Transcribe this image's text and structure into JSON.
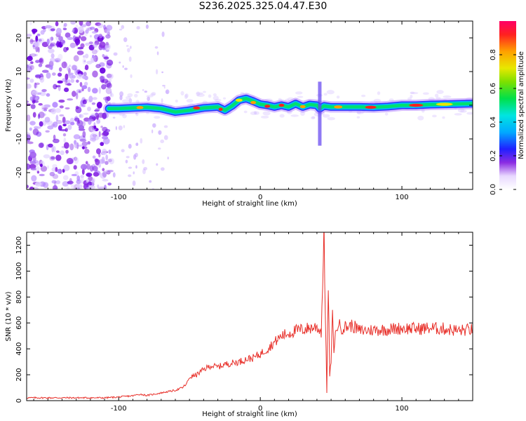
{
  "title": "S236.2025.325.04.47.E30",
  "chart_data": [
    {
      "type": "heatmap",
      "title": "S236.2025.325.04.47.E30",
      "xlabel": "Height of straight line (km)",
      "ylabel": "Frequency (Hz)",
      "xlim": [
        -165,
        150
      ],
      "ylim": [
        -25,
        25
      ],
      "xticks": [
        -100,
        0,
        100
      ],
      "yticks": [
        -20,
        -10,
        0,
        10,
        20
      ],
      "ridge": {
        "x": [
          -107,
          -100,
          -90,
          -80,
          -70,
          -60,
          -50,
          -40,
          -30,
          -25,
          -20,
          -15,
          -10,
          -5,
          0,
          5,
          10,
          15,
          20,
          25,
          30,
          35,
          40,
          42,
          45,
          50,
          60,
          70,
          80,
          90,
          100,
          110,
          120,
          130,
          140,
          150
        ],
        "y": [
          -1,
          -1,
          -0.8,
          -0.6,
          -1,
          -2,
          -1.5,
          -0.8,
          -0.5,
          -1.5,
          -0.2,
          1.5,
          2,
          1.2,
          0.3,
          0,
          -0.5,
          0,
          -0.5,
          0.5,
          -0.5,
          0.2,
          0,
          -1,
          -0.2,
          -0.5,
          -0.5,
          -0.5,
          -0.6,
          -0.4,
          0,
          0,
          0.2,
          0.3,
          0.4,
          0.5
        ]
      },
      "colorbar": {
        "label": "Normalized spectral amplitude",
        "range": [
          0,
          1
        ],
        "ticks": [
          "0.0",
          "0.2",
          "0.4",
          "0.6",
          "0.8"
        ],
        "tick_values": [
          0,
          0.2,
          0.4,
          0.6,
          0.8
        ]
      }
    },
    {
      "type": "line",
      "xlabel": "Height of straight line (km)",
      "ylabel": "SNR (10 * v/v)",
      "xlim": [
        -165,
        150
      ],
      "ylim": [
        0,
        1300
      ],
      "xticks": [
        -100,
        0,
        100
      ],
      "yticks": [
        0,
        200,
        400,
        600,
        800,
        1000,
        1200
      ],
      "color": "#e8302a",
      "series": [
        {
          "name": "SNR",
          "x": [
            -165,
            -150,
            -130,
            -110,
            -100,
            -90,
            -85,
            -80,
            -70,
            -65,
            -60,
            -55,
            -52,
            -50,
            -45,
            -40,
            -35,
            -30,
            -25,
            -20,
            -15,
            -10,
            -5,
            0,
            5,
            10,
            15,
            20,
            25,
            30,
            35,
            40,
            43,
            45,
            47,
            48,
            49,
            50,
            51,
            52,
            53,
            55,
            57,
            60,
            65,
            70,
            80,
            90,
            100,
            110,
            120,
            130,
            140,
            150
          ],
          "y": [
            22,
            22,
            22,
            22,
            28,
            38,
            50,
            40,
            60,
            70,
            80,
            100,
            130,
            180,
            200,
            240,
            270,
            260,
            280,
            290,
            300,
            320,
            330,
            360,
            400,
            450,
            500,
            520,
            540,
            550,
            560,
            570,
            530,
            1280,
            60,
            900,
            200,
            300,
            650,
            400,
            500,
            600,
            560,
            570,
            580,
            540,
            545,
            550,
            560,
            555,
            560,
            555,
            540,
            550
          ]
        }
      ]
    }
  ]
}
